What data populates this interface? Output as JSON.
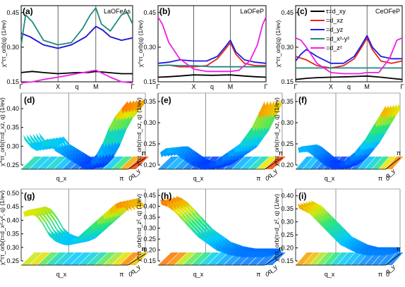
{
  "figure": {
    "background": "#ffffff"
  },
  "colors": {
    "xy": "#000000",
    "xz": "#e8231e",
    "yz": "#1a1ee0",
    "x2y2": "#1f8a7d",
    "z2": "#ee1fe6"
  },
  "legend": {
    "entries": [
      {
        "key": "xy",
        "label": "τ=d_xy"
      },
      {
        "key": "xz",
        "label": "=d_xz"
      },
      {
        "key": "yz",
        "label": "=d_yz"
      },
      {
        "key": "x2y2",
        "label": "=d_x²-y²"
      },
      {
        "key": "z2",
        "label": "=d_z²"
      }
    ]
  },
  "chart_data": [
    {
      "panel": "(a)",
      "name": "LaOFeAs",
      "type": "line",
      "ylabel": "χ^ττ_orb(q) (1/ev)",
      "yticks": [
        "0.15",
        "0.30",
        "0.45"
      ],
      "ylim": [
        0.15,
        0.48
      ],
      "xticks": [
        "Γ",
        "X",
        "q",
        "M",
        "Γ"
      ],
      "series": [
        {
          "key": "xy",
          "x": [
            0,
            0.1,
            0.2,
            0.33,
            0.5,
            0.6,
            0.67,
            0.78,
            0.9,
            1
          ],
          "y": [
            0.19,
            0.195,
            0.19,
            0.185,
            0.19,
            0.19,
            0.195,
            0.19,
            0.185,
            0.185
          ]
        },
        {
          "key": "xz",
          "x": [
            0,
            0.08,
            0.2,
            0.33,
            0.45,
            0.58,
            0.67,
            0.73,
            0.8,
            0.9,
            1
          ],
          "y": [
            0.36,
            0.345,
            0.31,
            0.295,
            0.31,
            0.345,
            0.39,
            0.375,
            0.345,
            0.33,
            0.34
          ]
        },
        {
          "key": "yz",
          "x": [
            0,
            0.08,
            0.2,
            0.33,
            0.45,
            0.58,
            0.67,
            0.73,
            0.8,
            0.9,
            1
          ],
          "y": [
            0.36,
            0.345,
            0.31,
            0.295,
            0.31,
            0.345,
            0.39,
            0.375,
            0.345,
            0.33,
            0.34
          ]
        },
        {
          "key": "x2y2",
          "x": [
            0,
            0.04,
            0.1,
            0.2,
            0.33,
            0.45,
            0.55,
            0.62,
            0.67,
            0.72,
            0.8,
            0.9,
            0.95,
            1
          ],
          "y": [
            0.31,
            0.44,
            0.41,
            0.33,
            0.31,
            0.32,
            0.38,
            0.44,
            0.47,
            0.4,
            0.37,
            0.44,
            0.45,
            0.4
          ]
        },
        {
          "key": "z2",
          "x": [
            0,
            0.1,
            0.2,
            0.33,
            0.5,
            0.67,
            0.8,
            0.9,
            1
          ],
          "y": [
            0.145,
            0.15,
            0.16,
            0.17,
            0.185,
            0.2,
            0.17,
            0.15,
            0.145
          ]
        }
      ]
    },
    {
      "panel": "(b)",
      "name": "LaOFeP",
      "type": "line",
      "ylabel": "χ^ττ_orb(q) (1/ev)",
      "yticks": [
        "0.15",
        "0.30",
        "0.45"
      ],
      "ylim": [
        0.15,
        0.48
      ],
      "xticks": [
        "Γ",
        "X",
        "q",
        "M",
        "Γ"
      ],
      "series": [
        {
          "key": "xy",
          "x": [
            0,
            0.1,
            0.2,
            0.33,
            0.5,
            0.67,
            0.8,
            0.9,
            1
          ],
          "y": [
            0.17,
            0.172,
            0.175,
            0.18,
            0.178,
            0.18,
            0.175,
            0.172,
            0.17
          ]
        },
        {
          "key": "xz",
          "x": [
            0,
            0.1,
            0.2,
            0.33,
            0.45,
            0.55,
            0.62,
            0.67,
            0.72,
            0.8,
            0.9,
            1
          ],
          "y": [
            0.22,
            0.222,
            0.215,
            0.215,
            0.22,
            0.25,
            0.29,
            0.32,
            0.27,
            0.23,
            0.22,
            0.22
          ]
        },
        {
          "key": "yz",
          "x": [
            0,
            0.1,
            0.2,
            0.33,
            0.45,
            0.55,
            0.62,
            0.67,
            0.72,
            0.8,
            0.9,
            1
          ],
          "y": [
            0.23,
            0.235,
            0.245,
            0.24,
            0.24,
            0.26,
            0.3,
            0.33,
            0.28,
            0.245,
            0.235,
            0.23
          ]
        },
        {
          "key": "x2y2",
          "x": [
            0,
            0.1,
            0.2,
            0.33,
            0.5,
            0.67,
            0.8,
            0.9,
            1
          ],
          "y": [
            0.22,
            0.222,
            0.22,
            0.22,
            0.215,
            0.215,
            0.215,
            0.215,
            0.215
          ]
        },
        {
          "key": "z2",
          "x": [
            0,
            0.04,
            0.1,
            0.2,
            0.33,
            0.45,
            0.6,
            0.67,
            0.75,
            0.85,
            0.92,
            0.97,
            1
          ],
          "y": [
            0.43,
            0.4,
            0.32,
            0.25,
            0.205,
            0.195,
            0.195,
            0.195,
            0.2,
            0.24,
            0.31,
            0.4,
            0.43
          ]
        }
      ]
    },
    {
      "panel": "(c)",
      "name": "CeOFeP",
      "type": "line",
      "ylabel": "χ^ττ_orb(q) (1/ev)",
      "yticks": [
        "0.15",
        "0.30",
        "0.45"
      ],
      "ylim": [
        0.15,
        0.48
      ],
      "xticks": [
        "Γ",
        "X",
        "q",
        "M",
        "Γ"
      ],
      "series": [
        {
          "key": "xy",
          "x": [
            0,
            0.1,
            0.2,
            0.33,
            0.5,
            0.67,
            0.8,
            0.9,
            1
          ],
          "y": [
            0.16,
            0.165,
            0.168,
            0.17,
            0.172,
            0.175,
            0.17,
            0.165,
            0.16
          ]
        },
        {
          "key": "xz",
          "x": [
            0,
            0.1,
            0.2,
            0.33,
            0.45,
            0.55,
            0.62,
            0.67,
            0.72,
            0.8,
            0.9,
            1
          ],
          "y": [
            0.26,
            0.245,
            0.22,
            0.21,
            0.22,
            0.25,
            0.3,
            0.34,
            0.29,
            0.24,
            0.23,
            0.24
          ]
        },
        {
          "key": "yz",
          "x": [
            0,
            0.05,
            0.1,
            0.2,
            0.33,
            0.45,
            0.55,
            0.62,
            0.67,
            0.72,
            0.8,
            0.9,
            1
          ],
          "y": [
            0.24,
            0.27,
            0.29,
            0.26,
            0.23,
            0.23,
            0.26,
            0.31,
            0.35,
            0.3,
            0.26,
            0.25,
            0.25
          ]
        },
        {
          "key": "x2y2",
          "x": [
            0,
            0.1,
            0.2,
            0.33,
            0.5,
            0.67,
            0.8,
            0.9,
            1
          ],
          "y": [
            0.21,
            0.21,
            0.21,
            0.21,
            0.21,
            0.21,
            0.21,
            0.21,
            0.21
          ]
        },
        {
          "key": "z2",
          "x": [
            0,
            0.05,
            0.1,
            0.2,
            0.33,
            0.45,
            0.6,
            0.67,
            0.78,
            0.88,
            0.95,
            1
          ],
          "y": [
            0.34,
            0.33,
            0.3,
            0.23,
            0.19,
            0.185,
            0.185,
            0.19,
            0.19,
            0.25,
            0.33,
            0.34
          ]
        }
      ]
    },
    {
      "panel": "(d)",
      "type": "surface",
      "ylabel": "χ^ττ_orb(τ=d_xz, q) (1/ev)",
      "zticks": [
        "0.25",
        "0.30",
        "0.35",
        "0.40"
      ],
      "zlim": [
        0.25,
        0.43
      ],
      "xlabel": "q_x",
      "ylabel2": "q_y",
      "corner_labels": [
        "π",
        "0",
        "π"
      ],
      "profile": [
        0.33,
        0.31,
        0.3,
        0.31,
        0.32,
        0.3,
        0.29,
        0.28,
        0.27,
        0.26,
        0.25,
        0.26,
        0.28,
        0.31,
        0.35,
        0.38,
        0.4,
        0.42
      ]
    },
    {
      "panel": "(e)",
      "type": "surface",
      "ylabel": "χ^ττ_orb(τ=d_xz, q) (1/ev)",
      "zticks": [
        "0.20",
        "0.25",
        "0.30",
        "0.35"
      ],
      "zlim": [
        0.2,
        0.36
      ],
      "xlabel": "q_x",
      "ylabel2": "q_y",
      "corner_labels": [
        "π",
        "0",
        "π"
      ],
      "profile": [
        0.23,
        0.24,
        0.24,
        0.23,
        0.22,
        0.21,
        0.205,
        0.2,
        0.205,
        0.21,
        0.22,
        0.23,
        0.24,
        0.25,
        0.27,
        0.29,
        0.32,
        0.35
      ]
    },
    {
      "panel": "(f)",
      "type": "surface",
      "ylabel": "χ^ττ_orb(τ=d_xz, q) (1/ev)",
      "zticks": [
        "0.20",
        "0.25",
        "0.30",
        "0.35"
      ],
      "zlim": [
        0.2,
        0.36
      ],
      "xlabel": "q_x",
      "ylabel2": "q_y",
      "corner_labels": [
        "π",
        "0",
        "π"
      ],
      "profile": [
        0.24,
        0.245,
        0.24,
        0.23,
        0.22,
        0.21,
        0.205,
        0.2,
        0.205,
        0.21,
        0.22,
        0.23,
        0.245,
        0.26,
        0.28,
        0.3,
        0.32,
        0.34
      ]
    },
    {
      "panel": "(g)",
      "type": "surface",
      "ylabel": "χ^ττ_orb(τ=d_x²-y², q) (1/ev)",
      "zticks": [
        "0.25",
        "0.30",
        "0.35",
        "0.40",
        "0.45",
        "0.50"
      ],
      "zlim": [
        0.25,
        0.5
      ],
      "xlabel": "q_x",
      "ylabel2": "q_y",
      "corner_labels": [
        "π",
        "0",
        "π"
      ],
      "profile": [
        0.43,
        0.44,
        0.43,
        0.4,
        0.36,
        0.34,
        0.33,
        0.325,
        0.33,
        0.34,
        0.36,
        0.38,
        0.4,
        0.42,
        0.44,
        0.46,
        0.47,
        0.45
      ]
    },
    {
      "panel": "(h)",
      "type": "surface",
      "ylabel": "χ^ττ_orb(τ=d_z², q) (1/ev)",
      "zticks": [
        "0.15",
        "0.20",
        "0.25",
        "0.30",
        "0.35",
        "0.40",
        "0.45"
      ],
      "zlim": [
        0.15,
        0.46
      ],
      "xlabel": "q_x",
      "ylabel2": "q_y",
      "corner_labels": [
        "π",
        "0",
        "π"
      ],
      "profile": [
        0.43,
        0.42,
        0.4,
        0.37,
        0.34,
        0.31,
        0.28,
        0.26,
        0.24,
        0.22,
        0.21,
        0.2,
        0.195,
        0.19,
        0.19,
        0.19,
        0.19,
        0.19
      ]
    },
    {
      "panel": "(i)",
      "type": "surface",
      "ylabel": "χ^ττ_orb(τ=d_z², q) (1/ev)",
      "zticks": [
        "0.15",
        "0.20",
        "0.25",
        "0.30",
        "0.35",
        "0.40"
      ],
      "zlim": [
        0.15,
        0.41
      ],
      "xlabel": "q_x",
      "ylabel2": "q_y",
      "corner_labels": [
        "π",
        "0",
        "π"
      ],
      "profile": [
        0.37,
        0.36,
        0.35,
        0.33,
        0.31,
        0.29,
        0.27,
        0.25,
        0.23,
        0.22,
        0.21,
        0.2,
        0.195,
        0.19,
        0.19,
        0.19,
        0.19,
        0.19
      ]
    }
  ]
}
